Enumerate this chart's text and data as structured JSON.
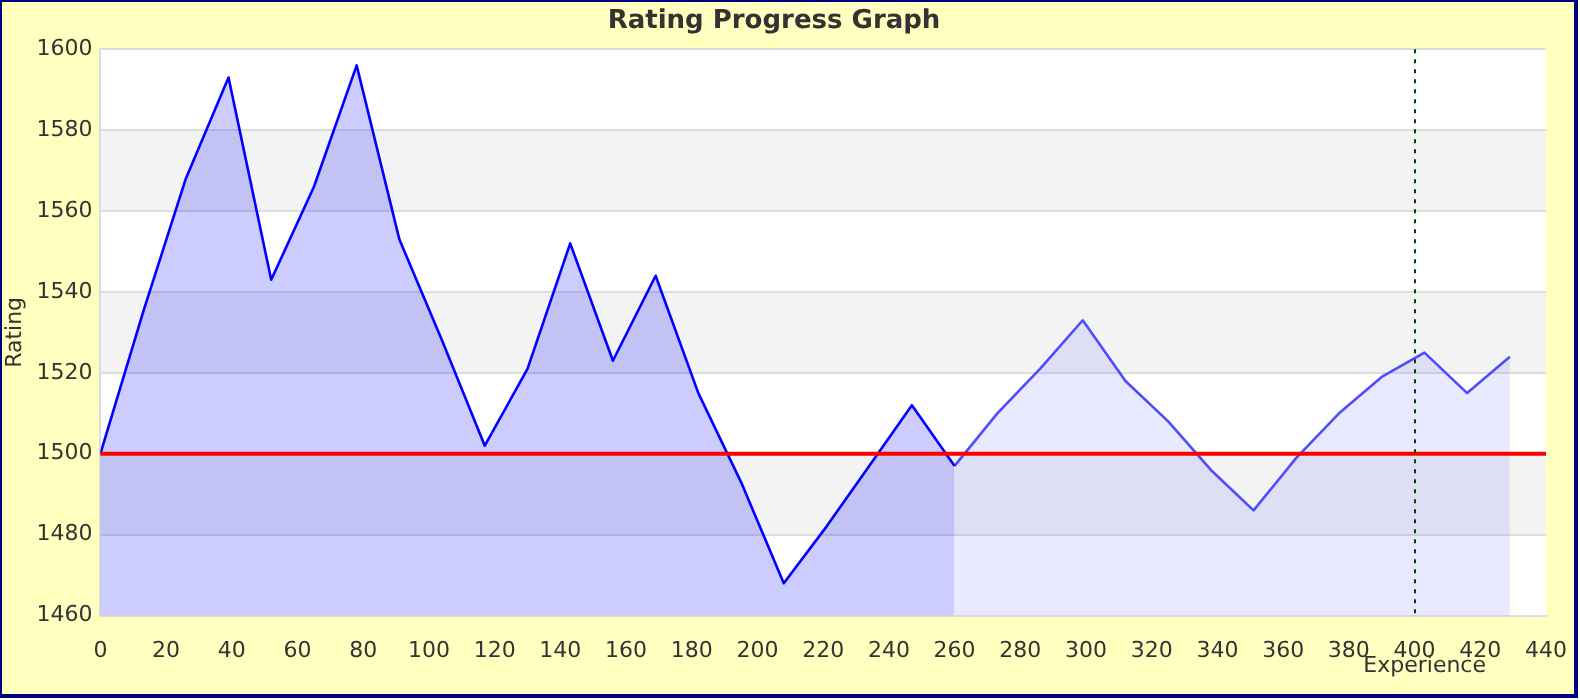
{
  "chart_data": {
    "type": "area",
    "title": "Rating Progress Graph",
    "xlabel": "Experience",
    "ylabel": "Rating",
    "series": [
      {
        "color": "#0000ff",
        "x": [
          0,
          13,
          26,
          39,
          52,
          65,
          78,
          91,
          104,
          117,
          130,
          143,
          156,
          169,
          182,
          195,
          208,
          221,
          234,
          247,
          260
        ],
        "values": [
          1500,
          1535,
          1568,
          1593,
          1543,
          1566,
          1596,
          1553,
          1528,
          1502,
          1521,
          1552,
          1523,
          1544,
          1515,
          1493,
          1468,
          1482,
          1497,
          1512,
          1497
        ]
      },
      {
        "color": "#4d4dff",
        "x": [
          260,
          273,
          286,
          299,
          312,
          325,
          338,
          351,
          364,
          377,
          390,
          403,
          416,
          429
        ],
        "values": [
          1497,
          1510,
          1521,
          1533,
          1518,
          1508,
          1496,
          1486,
          1499,
          1510,
          1519,
          1525,
          1515,
          1524
        ]
      }
    ],
    "xlim": [
      0,
      440
    ],
    "xticks": [
      0,
      20,
      40,
      60,
      80,
      100,
      120,
      140,
      160,
      180,
      200,
      220,
      240,
      260,
      280,
      300,
      320,
      340,
      360,
      380,
      400,
      420,
      440
    ],
    "ylim": [
      1460,
      1600
    ],
    "yticks": [
      1460,
      1480,
      1500,
      1520,
      1540,
      1560,
      1580,
      1600
    ],
    "grid": "y",
    "legend": false,
    "ref_lines": [
      {
        "axis": "y",
        "value": 1500,
        "color": "#ff0000",
        "line_style": "solid"
      },
      {
        "axis": "x",
        "value": 400,
        "color": "#004400",
        "line_style": "dotted"
      }
    ]
  }
}
